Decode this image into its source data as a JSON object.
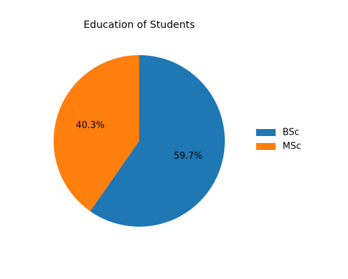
{
  "chart_data": {
    "type": "pie",
    "title": "Education of Students",
    "categories": [
      "BSc",
      "MSc"
    ],
    "values": [
      59.7,
      40.3
    ],
    "labels": [
      "59.7%",
      "40.3%"
    ],
    "colors": [
      "#1f77b4",
      "#ff7f0e"
    ],
    "legend_position": "right"
  }
}
